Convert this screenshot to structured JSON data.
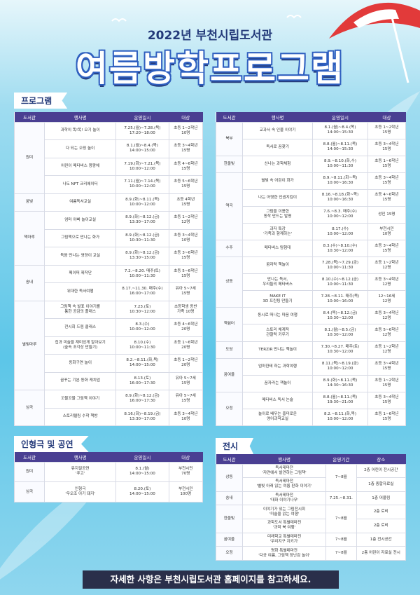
{
  "header": {
    "subtitle": "2022년 부천시립도서관",
    "title": "여름방학프로그램"
  },
  "program": {
    "label": "프로그램",
    "headers": [
      "도서관",
      "행사명",
      "운영일시",
      "대상"
    ],
    "left": [
      {
        "library": "원미",
        "rows": [
          [
            [
              "과학이 똑!똑! 오기 놀이"
            ],
            [
              "7.25.(월)~7.28.(목)",
              "17:20~18:00"
            ],
            [
              "초등 1~2학년",
              "10명"
            ]
          ],
          [
            [
              "다 되는 오징 놀이"
            ],
            [
              "8.1.(월)~8.4.(목)",
              "14:00~15:00"
            ],
            [
              "초등 3~4학년",
              "15명"
            ]
          ],
          [
            [
              "어린이 메타버스 팡팡체"
            ],
            [
              "7.19.(화)~7.21.(목)",
              "10:00~12:00"
            ],
            [
              "초등 4~6학년",
              "15명"
            ]
          ],
          [
            [
              "나도 NFT 크리에이터"
            ],
            [
              "7.11.(월)~7.14.(목)",
              "10:00~12:00"
            ],
            [
              "초등 5~6학년",
              "15명"
            ]
          ]
        ]
      },
      {
        "library": "꿈빛",
        "rows": [
          [
            [
              "여름독서교실"
            ],
            [
              "8.9.(화)~8.11.(목)",
              "10:00~12:00"
            ],
            [
              "초등 4학년",
              "15명"
            ]
          ]
        ]
      },
      {
        "library": "책마루",
        "rows": [
          [
            [
              "엄마 아빠 놀이교실"
            ],
            [
              "8.9.(화)~8.12.(금)",
              "13:30~17:00"
            ],
            [
              "초등 1~2학년",
              "12명"
            ]
          ],
          [
            [
              "그림책으로 만나는 화가"
            ],
            [
              "8.9.(화)~8.12.(금)",
              "10:30~11:30"
            ],
            [
              "초등 3~4학년",
              "10명"
            ]
          ],
          [
            [
              "독음 만나는 영양이 교실"
            ],
            [
              "8.9.(화)~8.12.(금)",
              "13:30~15:00"
            ],
            [
              "초등 3~6학년",
              "15명"
            ]
          ]
        ]
      },
      {
        "library": "송내",
        "rows": [
          [
            [
              "페이퍼 제작단"
            ],
            [
              "7.2.~8.20. 매주(토)",
              "10:00~11:30"
            ],
            [
              "초등 5~6학년",
              "15명"
            ]
          ],
          [
            [
              "위대한 독서여행"
            ],
            [
              "8.17.~11.30. 매주(수)",
              "16:00~17:00"
            ],
            [
              "유아 5~7세",
              "15명"
            ]
          ]
        ]
      },
      {
        "library": "별빛마루",
        "rows": [
          [
            [
              "그림책 속 발표 이야기를",
              "통한 공감의 플래스"
            ],
            [
              "7.23.(토)",
              "10:30~12:00"
            ],
            [
              "초등학생 동반",
              "가족 10명"
            ]
          ],
          [
            [
              "전시회 드림 클래스"
            ],
            [
              "8.3.(수)",
              "10:00~12:00"
            ],
            [
              "초등 4~6학년",
              "20명"
            ]
          ],
          [
            [
              "집과 미술을 재미있게 알아보기",
              "(숲속 조각상 만들기)"
            ],
            [
              "8.10.(수)",
              "10:00~11:30"
            ],
            [
              "초등 1~6학년",
              "20명"
            ]
          ],
          [
            [
              "동화구연 놀이"
            ],
            [
              "8.2.~8.11.(화,목)",
              "14:00~15:00"
            ],
            [
              "초등 1~2학년",
              "20명"
            ]
          ],
          [
            [
              "꿈꾸는 기본 동화 캐치업"
            ],
            [
              "8.13.(토)",
              "16:00~17:30"
            ],
            [
              "유아 5~7세",
              "15명"
            ]
          ]
        ]
      },
      {
        "library": "심곡",
        "rows": [
          [
            [
              "꼬물꼬물 그림책 이야기"
            ],
            [
              "8.9.(화)~8.12.(금)",
              "16:00~17:30"
            ],
            [
              "유아 5~7세",
              "15명"
            ]
          ],
          [
            [
              "스토리텔링 수학 책방"
            ],
            [
              "8.16.(화)~8.19.(금)",
              "13:30~17:00"
            ],
            [
              "초등 3~4학년",
              "10명"
            ]
          ]
        ]
      }
    ],
    "right": [
      {
        "library": "북부",
        "rows": [
          [
            [
              "교과서 속 인물 이야기"
            ],
            [
              "8.1.(월)~8.4.(목)",
              "14:00~15:30"
            ],
            [
              "초등 1~2학년",
              "15명"
            ]
          ],
          [
            [
              "독서로 꿈찾기"
            ],
            [
              "8.8.(월)~8.11.(목)",
              "14:00~15:30"
            ],
            [
              "초등 3~4학년",
              "15명"
            ]
          ]
        ]
      },
      {
        "library": "한울빛",
        "rows": [
          [
            [
              "신나는 과학체험"
            ],
            [
              "8.9.~8.10.(화,수)",
              "10:00~11:30"
            ],
            [
              "초등 1~6학년",
              "15명"
            ]
          ]
        ]
      },
      {
        "library": "역곡",
        "rows": [
          [
            [
              "별빛 속 어린이 화가"
            ],
            [
              "8.9.~8.11.(화~목)",
              "10:00~16:30"
            ],
            [
              "초등 3~4학년",
              "15명"
            ]
          ],
          [
            [
              "나는 어엿한 인권지킴이"
            ],
            [
              "8.16.~8.18.(화~목)",
              "10:00~16:30"
            ],
            [
              "초등 4~6학년",
              "15명"
            ]
          ],
          [
            [
              "그림을 이용한",
              "동작 만드는 발명"
            ],
            [
              "7.6.~8.3. 매주(수)",
              "10:00~12:00"
            ],
            [
              "성인 15명"
            ]
          ],
          [
            [
              "과자 특강",
              "'가족과 함께하는'"
            ],
            [
              "8.17.(수)",
              "10:00~12:00"
            ],
            [
              "부천시민",
              "10명"
            ]
          ]
        ]
      },
      {
        "library": "수주",
        "rows": [
          [
            [
              "메타버스 탐험대"
            ],
            [
              "8.3.(수)~8.10.(수)",
              "10:30~12:00"
            ],
            [
              "초등 3~4학년",
              "15명"
            ]
          ]
        ]
      },
      {
        "library": "상동",
        "rows": [
          [
            [
              "꿈자락 책놀이"
            ],
            [
              "7.28.(목)~7.29.(금)",
              "10:00~11:30"
            ],
            [
              "초등 1~2학년",
              "12명"
            ]
          ],
          [
            [
              "만나는 독서,",
              "우리들의 메타버스"
            ],
            [
              "8.10.(수)~8.12.(금)",
              "10:00~11:30"
            ],
            [
              "초등 3~4학년",
              "12명"
            ]
          ],
          [
            [
              "MAKE IT",
              "3D 프린팅 만들기"
            ],
            [
              "7.28.~8.11. 매주(목)",
              "10:00~16:00"
            ],
            [
              "12~16세",
              "12명"
            ]
          ]
        ]
      },
      {
        "library": "책쉼터",
        "rows": [
          [
            [
              "동시로 떠나는 마음 여행"
            ],
            [
              "8.4.(목)~8.12.(금)",
              "10:30~12:00"
            ],
            [
              "초등 3~4학년",
              "12명"
            ]
          ],
          [
            [
              "스토리 체계적",
              "관찰력 키우기"
            ],
            [
              "8.1.(월)~8.5.(금)",
              "10:30~12:00"
            ],
            [
              "초등 5~6학년",
              "12명"
            ]
          ]
        ]
      },
      {
        "library": "도당",
        "rows": [
          [
            [
              "TERZIR 만나는 책놀이"
            ],
            [
              "7.30.~8.27. 매주(토)",
              "10:30~12:00"
            ],
            [
              "초등 1~2학년",
              "12명"
            ]
          ]
        ]
      },
      {
        "library": "꿈여울",
        "rows": [
          [
            [
              "엄마한테 하는 과학여행"
            ],
            [
              "8.11.(목)~8.19.(금)",
              "10:00~12:00"
            ],
            [
              "초등 3~4학년",
              "15명"
            ]
          ],
          [
            [
              "꿈자라는 책놀이"
            ],
            [
              "8.9.(화)~8.11.(목)",
              "14:30~16:30"
            ],
            [
              "초등 1~2학년",
              "15명"
            ]
          ]
        ]
      },
      {
        "library": "오정",
        "rows": [
          [
            [
              "메타버스 독서 논술"
            ],
            [
              "8.8.(월)~8.11.(목)",
              "19:30~21:00"
            ],
            [
              "초등 3~4학년",
              "15명"
            ]
          ],
          [
            [
              "놀이로 배우는 흥미로운",
              "영어과학교실"
            ],
            [
              "8.2.~8.11.(화,목)",
              "10:00~12:00"
            ],
            [
              "초등 1~6학년",
              "15명"
            ]
          ]
        ]
      }
    ]
  },
  "performance": {
    "label": "인형극 및 공연",
    "headers": [
      "도서관",
      "행사명",
      "운영일시",
      "대상"
    ],
    "groups": [
      {
        "library": "원미",
        "rows": [
          [
            [
              "뮤지컬공연",
              "'푸고'"
            ],
            [
              "8.1.(월)",
              "14:00~15:00"
            ],
            [
              "부천시민",
              "70명"
            ]
          ]
        ]
      },
      {
        "library": "심곡",
        "rows": [
          [
            [
              "인형극",
              "'우오조 아기 돼지'"
            ],
            [
              "8.20.(토)",
              "14:00~15:00"
            ],
            [
              "부천시민",
              "100명"
            ]
          ]
        ]
      }
    ]
  },
  "exhibition": {
    "label": "전시",
    "headers": [
      "도서관",
      "행사명",
      "운영기간",
      "장소"
    ],
    "groups": [
      {
        "library": "상동",
        "period": "7~8월",
        "rows": [
          [
            [
              "독서테마전",
              "'자연에서 발견하는 그림책'"
            ],
            [
              "2층 어린이 전시공간"
            ]
          ],
          [
            [
              "독서테마전",
              "'별빛 아래 읽는 여름 판화 이야기'"
            ],
            [
              "1층 종합자료실"
            ]
          ]
        ]
      },
      {
        "library": "송내",
        "period": "7.25.~8.31.",
        "rows": [
          [
            [
              "독서테마전",
              "'대화 이야기나무'"
            ],
            [
              "1층 어울림"
            ]
          ]
        ]
      },
      {
        "library": "한울빛",
        "period": "7~8월",
        "rows": [
          [
            [
              "이야기가 있는 그림전시회",
              "'미술을 읽는 여행'"
            ],
            [
              "2층 로비"
            ]
          ],
          [
            [
              "과학도서 특별테마전",
              "'과학 북 여행'"
            ],
            [
              "2층 로비"
            ]
          ]
        ]
      },
      {
        "library": "꿈여울",
        "period": "7~8월",
        "rows": [
          [
            [
              "미래학교 특별테마전",
              "'우리지구 지키기'"
            ],
            [
              "1층 전시공간"
            ]
          ]
        ]
      },
      {
        "library": "오정",
        "period": "7~8월",
        "rows": [
          [
            [
              "명화 특별테마전",
              "'다공 여름, 그림책 장난감 놀이'"
            ],
            [
              "2층 어린이 자료실 전시"
            ]
          ]
        ]
      }
    ]
  },
  "footer": {
    "text": "자세한 사항은 부천시립도서관 홈페이지를 참고하세요."
  }
}
